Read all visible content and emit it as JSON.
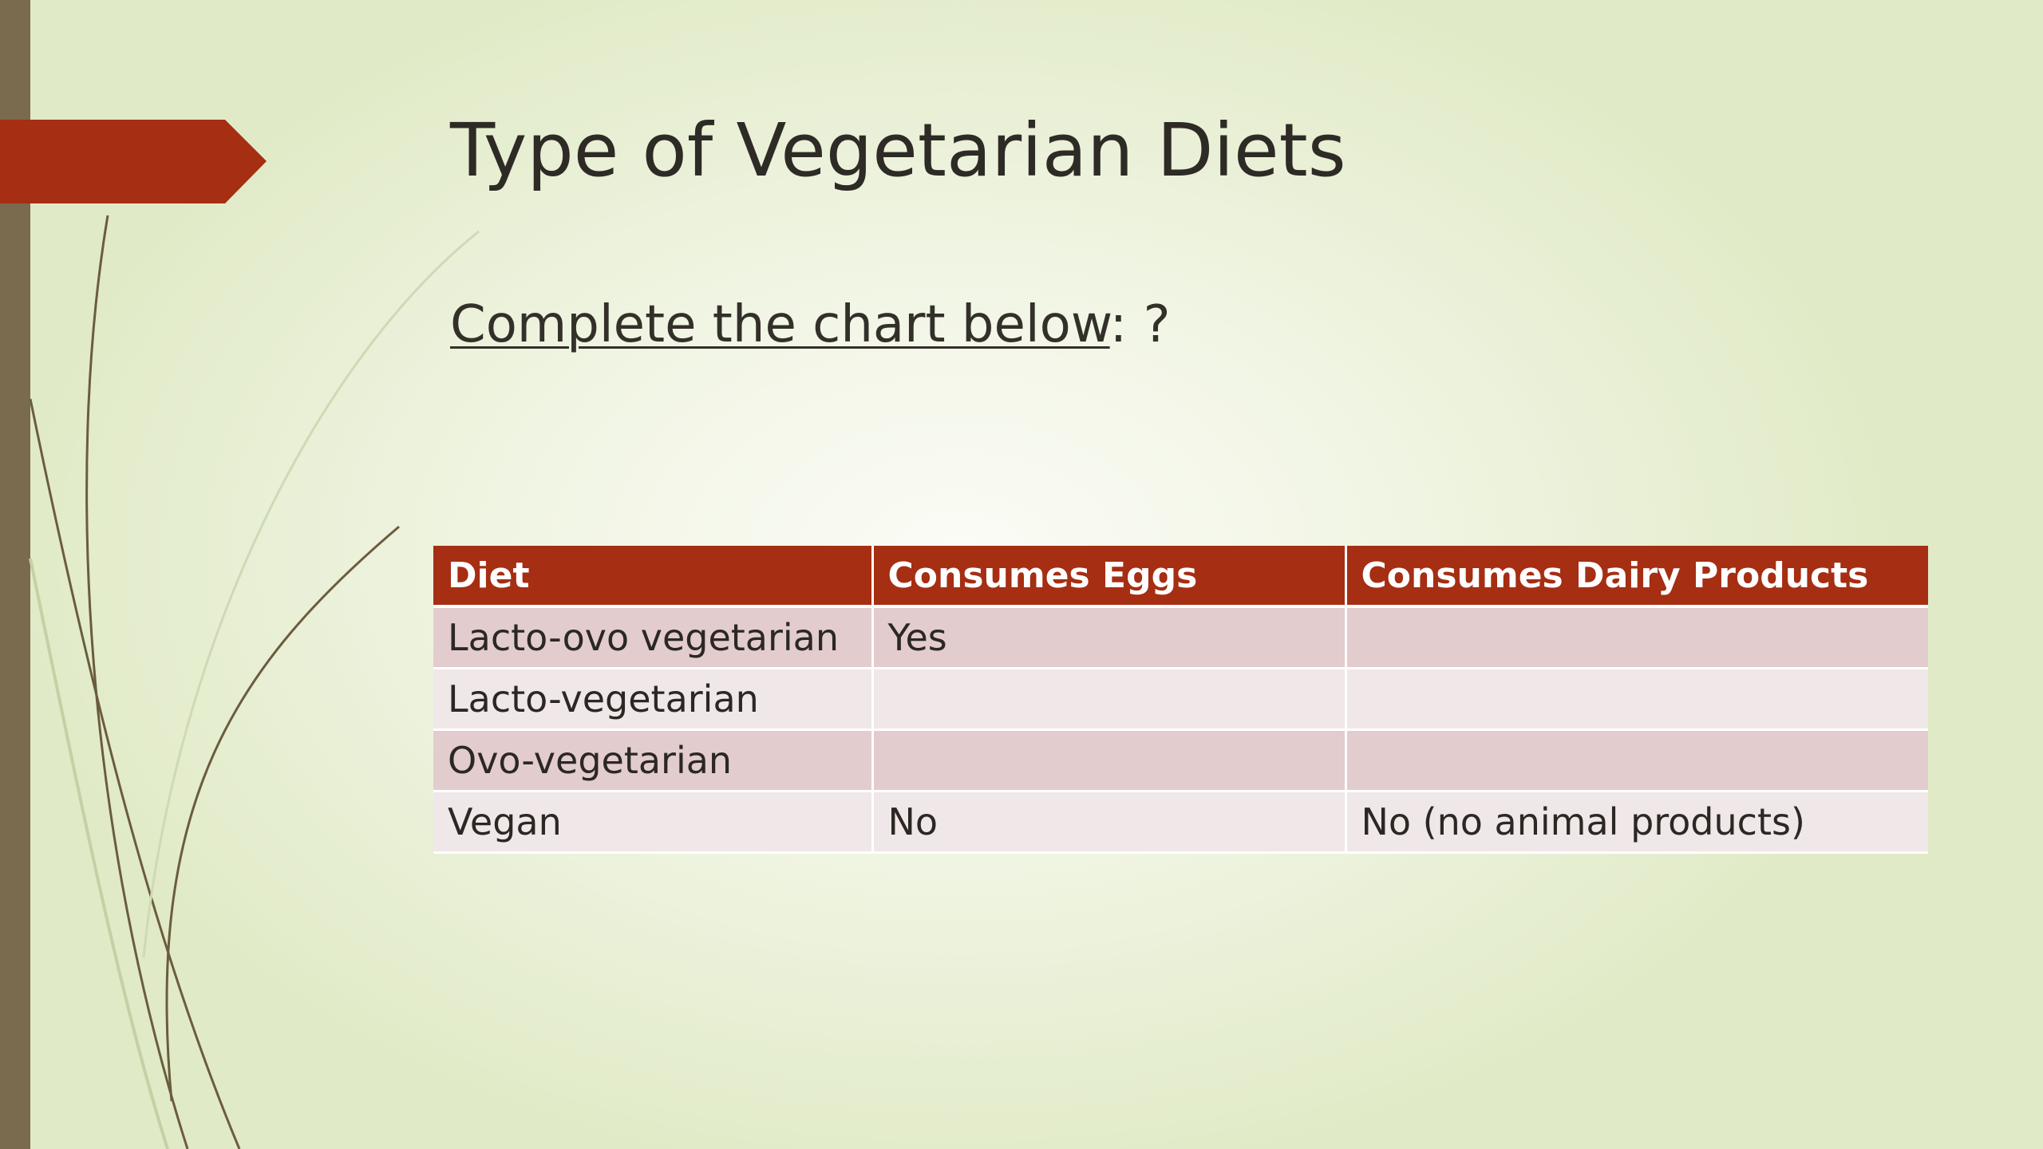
{
  "slide": {
    "title": "Type of Vegetarian Diets",
    "subtitle_underlined": "Complete the chart below",
    "subtitle_rest": ": ?"
  },
  "table": {
    "headers": [
      "Diet",
      "Consumes Eggs",
      "Consumes Dairy Products"
    ],
    "rows": [
      [
        "Lacto-ovo vegetarian",
        "Yes",
        ""
      ],
      [
        "Lacto-vegetarian",
        "",
        ""
      ],
      [
        "Ovo-vegetarian",
        "",
        ""
      ],
      [
        "Vegan",
        "No",
        "No (no animal products)"
      ]
    ]
  },
  "colors": {
    "accent": "#a52e13",
    "sidebar": "#7a6a4e",
    "row_odd": "#e3ccce",
    "row_even": "#efe7e8",
    "background": "#f1f5e4"
  }
}
